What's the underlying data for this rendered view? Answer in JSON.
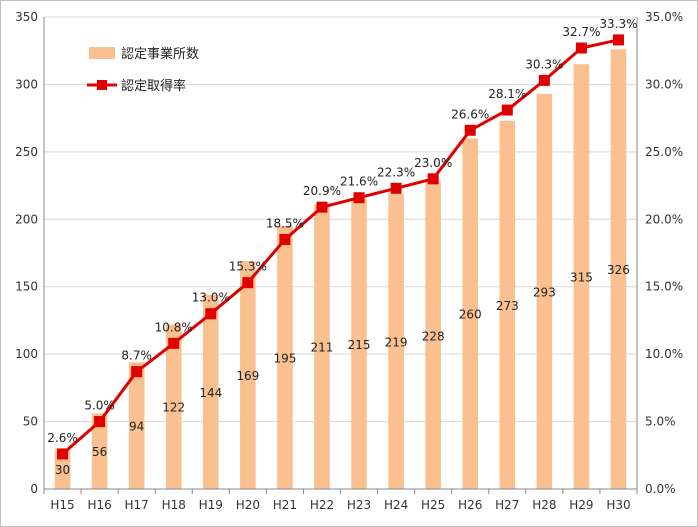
{
  "chart_data": {
    "type": "bar+line",
    "categories": [
      "H15",
      "H16",
      "H17",
      "H18",
      "H19",
      "H20",
      "H21",
      "H22",
      "H23",
      "H24",
      "H25",
      "H26",
      "H27",
      "H28",
      "H29",
      "H30"
    ],
    "series": [
      {
        "name": "認定事業所数",
        "type": "bar",
        "axis": "left",
        "color": "#fac090",
        "values": [
          30,
          56,
          94,
          122,
          144,
          169,
          195,
          211,
          215,
          219,
          228,
          260,
          273,
          293,
          315,
          326
        ],
        "labels": [
          "30",
          "56",
          "94",
          "122",
          "144",
          "169",
          "195",
          "211",
          "215",
          "219",
          "228",
          "260",
          "273",
          "293",
          "315",
          "326"
        ]
      },
      {
        "name": "認定取得率",
        "type": "line",
        "axis": "right",
        "color": "#e00000",
        "values": [
          2.6,
          5.0,
          8.7,
          10.8,
          13.0,
          15.3,
          18.5,
          20.9,
          21.6,
          22.3,
          23.0,
          26.6,
          28.1,
          30.3,
          32.7,
          33.3
        ],
        "labels": [
          "2.6%",
          "5.0%",
          "8.7%",
          "10.8%",
          "13.0%",
          "15.3%",
          "18.5%",
          "20.9%",
          "21.6%",
          "22.3%",
          "23.0%",
          "26.6%",
          "28.1%",
          "30.3%",
          "32.7%",
          "33.3%"
        ]
      }
    ],
    "y_left": {
      "lim": [
        0,
        350
      ],
      "ticks": [
        "0",
        "50",
        "100",
        "150",
        "200",
        "250",
        "300",
        "350"
      ]
    },
    "y_right": {
      "lim": [
        0,
        35
      ],
      "ticks": [
        "0.0%",
        "5.0%",
        "10.0%",
        "15.0%",
        "20.0%",
        "25.0%",
        "30.0%",
        "35.0%"
      ]
    },
    "grid": true,
    "legend": {
      "position": "top-left",
      "items": [
        {
          "label": "認定事業所数",
          "marker": "bar"
        },
        {
          "label": "認定取得率",
          "marker": "line-square"
        }
      ]
    }
  }
}
